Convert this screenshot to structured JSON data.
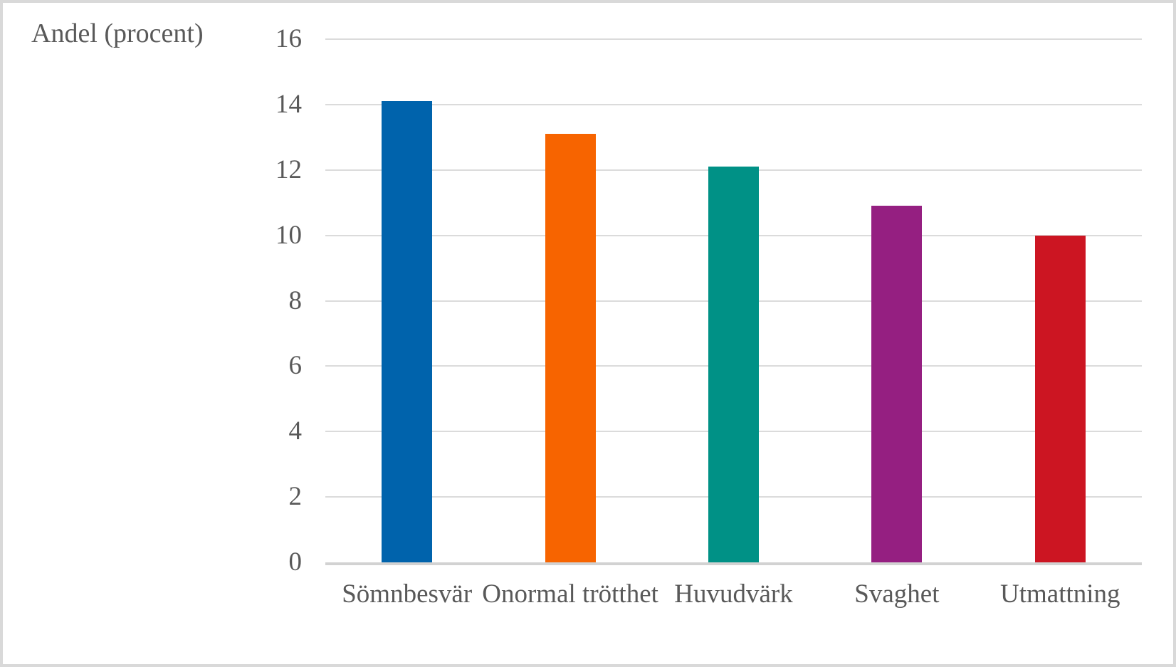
{
  "chart_data": {
    "type": "bar",
    "title": "Andel (procent)",
    "ylabel": "Andel (procent)",
    "xlabel": "",
    "categories": [
      "Sömnbesvär",
      "Onormal trötthet",
      "Huvudvärk",
      "Svaghet",
      "Utmattning"
    ],
    "values": [
      14.1,
      13.1,
      12.1,
      10.9,
      10.0
    ],
    "bar_colors": [
      "#0063AC",
      "#F76400",
      "#009186",
      "#951F81",
      "#CC1522"
    ],
    "ylim": [
      0,
      16
    ],
    "yticks": [
      0,
      2,
      4,
      6,
      8,
      10,
      12,
      14,
      16
    ],
    "grid": true,
    "legend": false
  },
  "styles": {
    "text_color": "#595959",
    "gridline_color": "#DBDBDB",
    "axis_line_color": "#D2D2D2",
    "border_color": "#D9D9D9",
    "background_color": "#FFFFFF"
  }
}
